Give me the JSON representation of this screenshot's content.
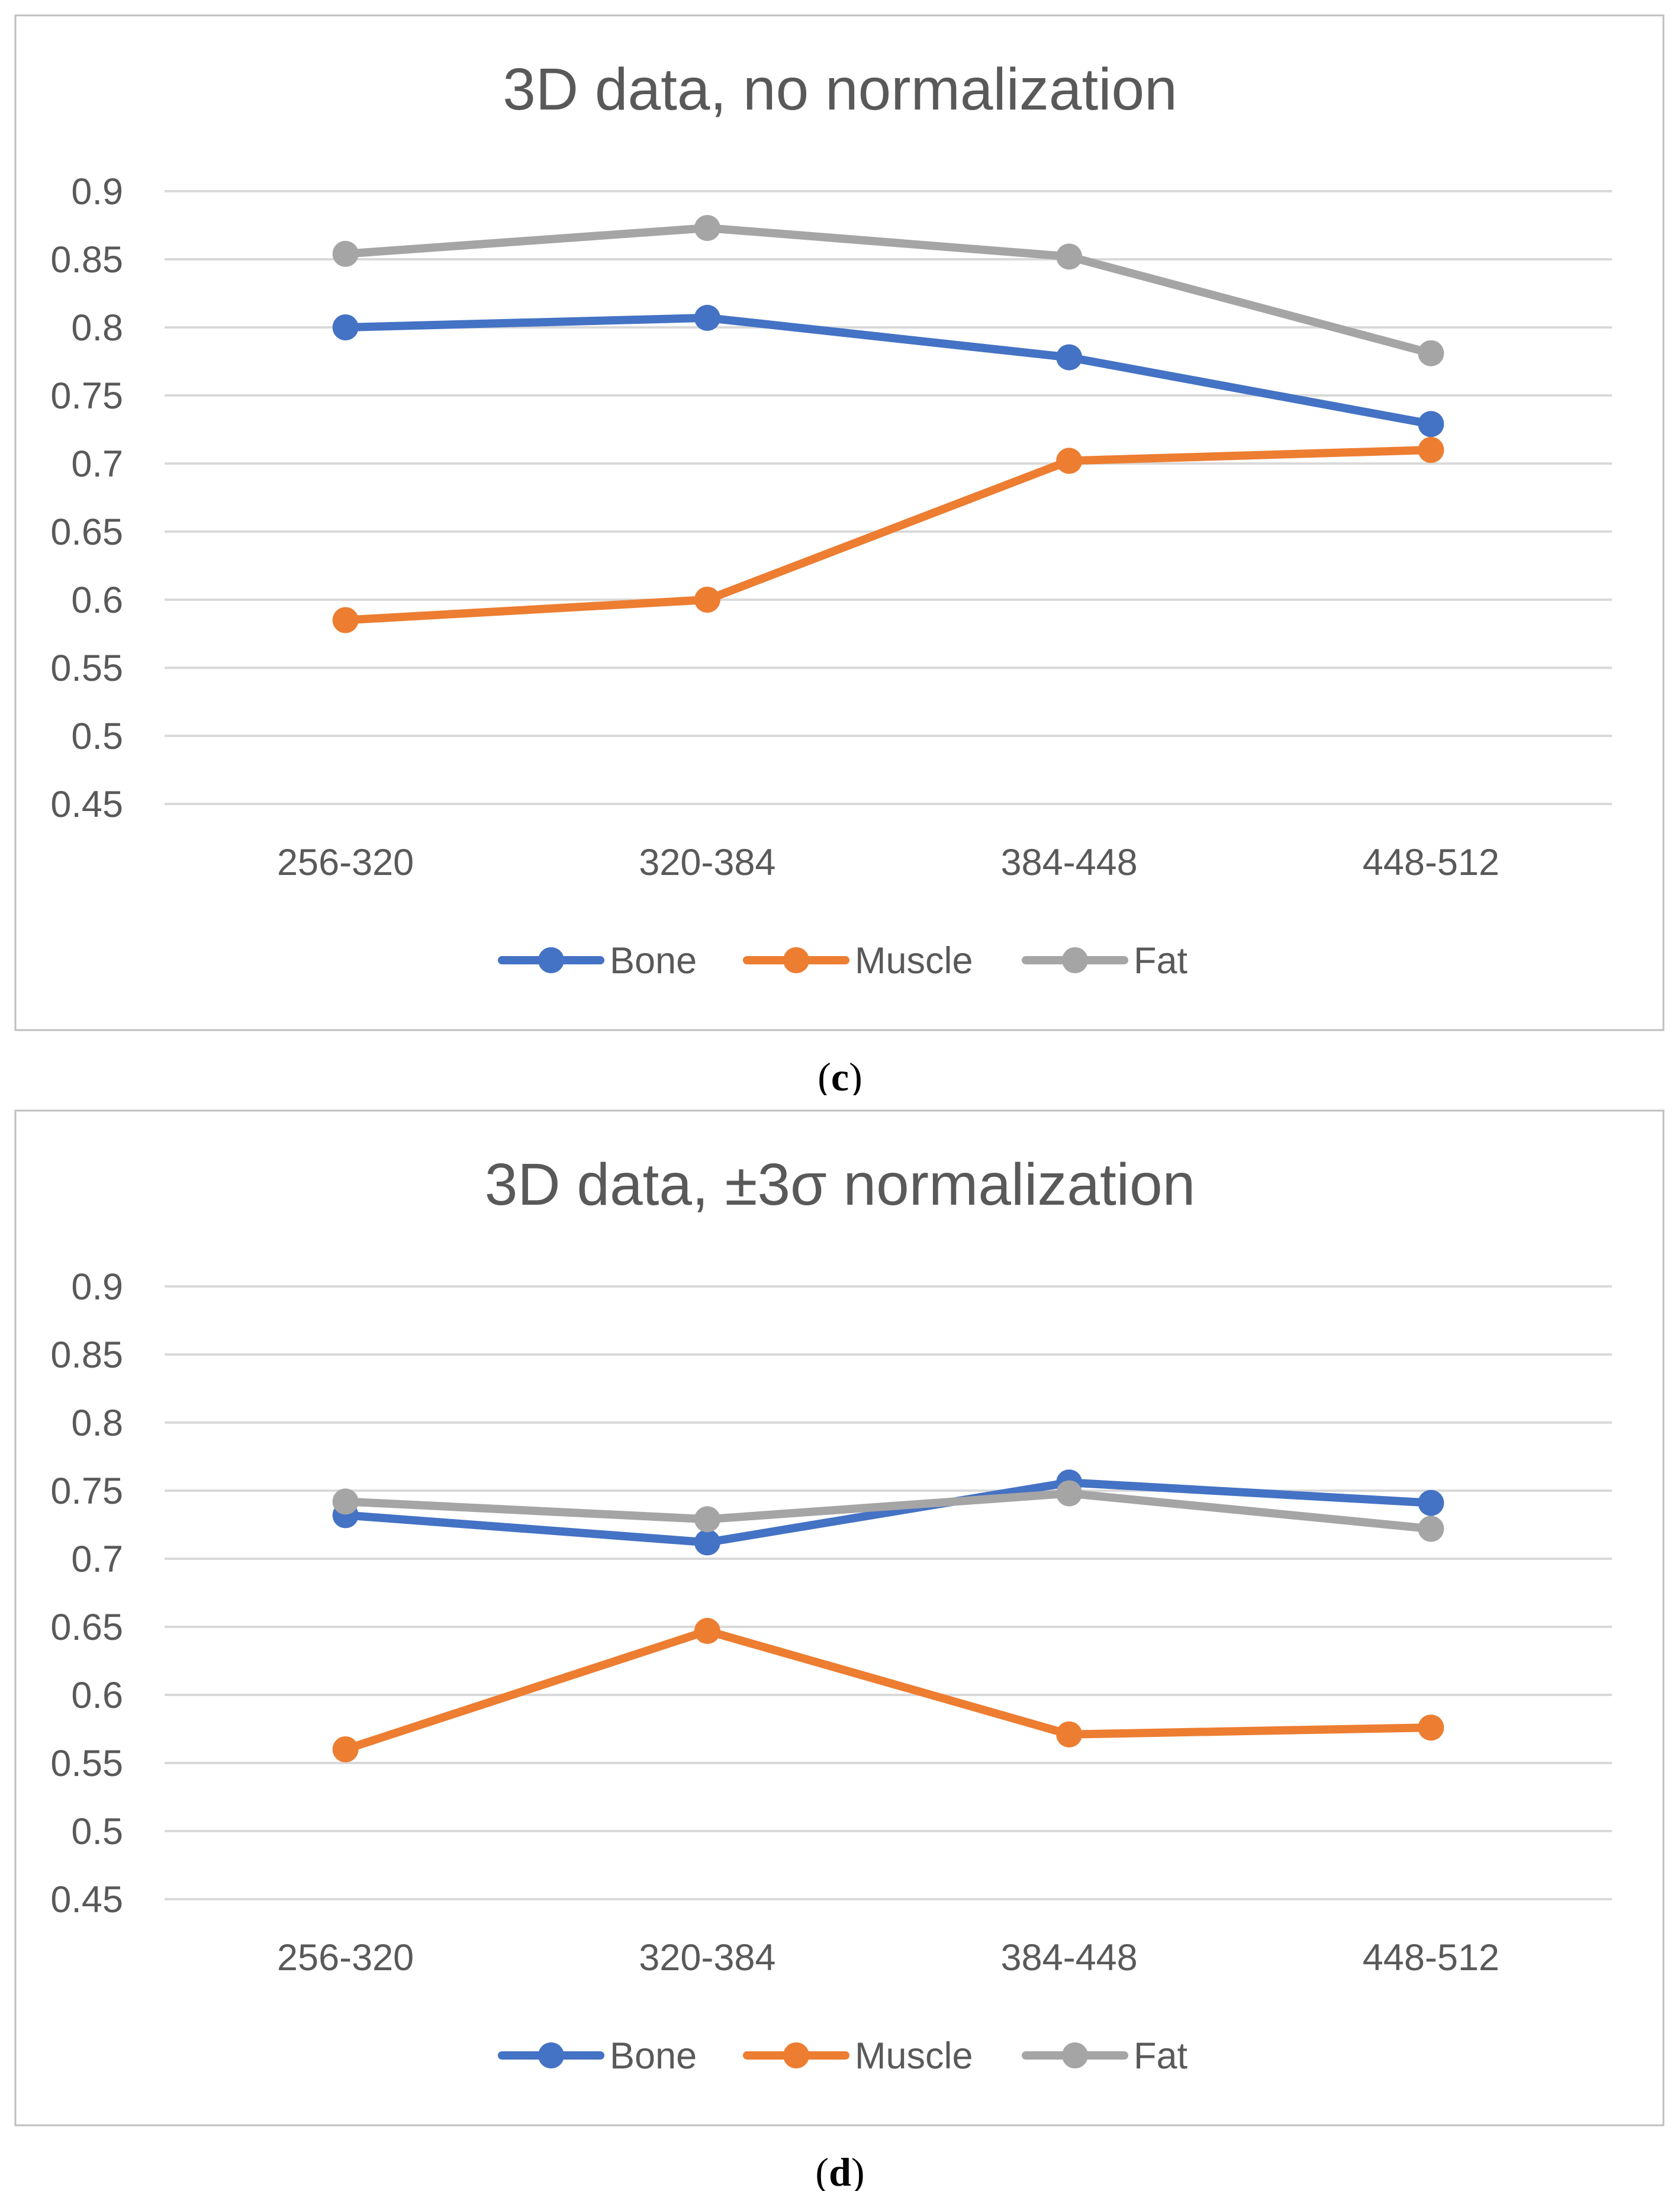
{
  "chart_data": [
    {
      "type": "line",
      "title": "3D data, no normalization",
      "caption_open": "(",
      "caption_letter": "c",
      "caption_close": ")",
      "categories": [
        "256-320",
        "320-384",
        "384-448",
        "448-512"
      ],
      "ylim": [
        0.45,
        0.9
      ],
      "yticks": [
        "0.9",
        "0.85",
        "0.8",
        "0.75",
        "0.7",
        "0.65",
        "0.6",
        "0.55",
        "0.5",
        "0.45"
      ],
      "grid": true,
      "legend_position": "bottom",
      "series": [
        {
          "name": "Bone",
          "color": "#4472c4",
          "values": [
            0.8,
            0.807,
            0.778,
            0.729
          ]
        },
        {
          "name": "Muscle",
          "color": "#ed7d31",
          "values": [
            0.585,
            0.6,
            0.702,
            0.71
          ]
        },
        {
          "name": "Fat",
          "color": "#a5a5a5",
          "values": [
            0.854,
            0.873,
            0.852,
            0.781
          ]
        }
      ]
    },
    {
      "type": "line",
      "title": "3D data, ±3σ normalization",
      "caption_open": "(",
      "caption_letter": "d",
      "caption_close": ")",
      "categories": [
        "256-320",
        "320-384",
        "384-448",
        "448-512"
      ],
      "ylim": [
        0.45,
        0.9
      ],
      "yticks": [
        "0.9",
        "0.85",
        "0.8",
        "0.75",
        "0.7",
        "0.65",
        "0.6",
        "0.55",
        "0.5",
        "0.45"
      ],
      "grid": true,
      "legend_position": "bottom",
      "series": [
        {
          "name": "Bone",
          "color": "#4472c4",
          "values": [
            0.732,
            0.712,
            0.756,
            0.741
          ]
        },
        {
          "name": "Muscle",
          "color": "#ed7d31",
          "values": [
            0.56,
            0.647,
            0.571,
            0.576
          ]
        },
        {
          "name": "Fat",
          "color": "#a5a5a5",
          "values": [
            0.742,
            0.729,
            0.748,
            0.722
          ]
        }
      ]
    }
  ]
}
